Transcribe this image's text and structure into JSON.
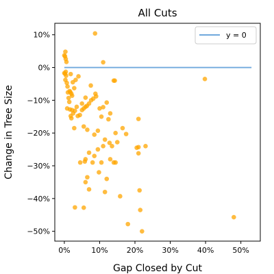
{
  "chart_data": {
    "type": "scatter",
    "title": "All Cuts",
    "xlabel": "Gap Closed by Cut",
    "ylabel": "Change in Tree Size",
    "xlim": [
      -0.027,
      0.555
    ],
    "ylim": [
      -0.53,
      0.135
    ],
    "x_ticks": [
      0,
      0.1,
      0.2,
      0.3,
      0.4,
      0.5
    ],
    "x_tick_labels": [
      "0%",
      "10%",
      "20%",
      "30%",
      "40%",
      "50%"
    ],
    "y_ticks": [
      0.1,
      0.0,
      -0.1,
      -0.2,
      -0.3,
      -0.4,
      -0.5
    ],
    "y_tick_labels": [
      "10%",
      "0%",
      "−10%",
      "−20%",
      "−30%",
      "−40%",
      "−50%"
    ],
    "grid": false,
    "legend": {
      "position": "top-right",
      "entries": [
        "y = 0"
      ]
    },
    "colors": {
      "points": "#FFA500",
      "reference_line": "#6FA8DC"
    },
    "reference_line": {
      "name": "y = 0",
      "y": 0,
      "x_range": [
        0,
        0.53
      ]
    },
    "series": [
      {
        "x": [
          0.0,
          0.002,
          0.004,
          0.003,
          0.006,
          0.0,
          0.002,
          0.004,
          0.005,
          0.003,
          0.007,
          0.009,
          0.01,
          0.012,
          0.017,
          0.02,
          0.022,
          0.015,
          0.028,
          0.04,
          0.018,
          0.024,
          0.032,
          0.014,
          0.008,
          0.016,
          0.022,
          0.03,
          0.038,
          0.044,
          0.05,
          0.055,
          0.06,
          0.064,
          0.07,
          0.076,
          0.082,
          0.088,
          0.09,
          0.075,
          0.06,
          0.05,
          0.035,
          0.025,
          0.018,
          0.02,
          0.028,
          0.055,
          0.065,
          0.085,
          0.095,
          0.1,
          0.11,
          0.12,
          0.13,
          0.14,
          0.125,
          0.105,
          0.115,
          0.128,
          0.15,
          0.165,
          0.175,
          0.145,
          0.135,
          0.11,
          0.095,
          0.085,
          0.07,
          0.06,
          0.045,
          0.058,
          0.065,
          0.08,
          0.098,
          0.105,
          0.12,
          0.13,
          0.14,
          0.145,
          0.06,
          0.07,
          0.055,
          0.03,
          0.087,
          0.11,
          0.143,
          0.115,
          0.158,
          0.18,
          0.21,
          0.205,
          0.21,
          0.21,
          0.215,
          0.213,
          0.22,
          0.23,
          0.398,
          0.48
        ],
        "y": [
          0.037,
          0.034,
          0.026,
          0.048,
          0.017,
          -0.017,
          -0.019,
          -0.013,
          -0.025,
          -0.038,
          -0.047,
          -0.058,
          -0.076,
          -0.093,
          -0.075,
          -0.08,
          -0.086,
          -0.072,
          -0.063,
          -0.027,
          -0.02,
          -0.045,
          -0.038,
          -0.105,
          -0.125,
          -0.128,
          -0.13,
          -0.132,
          -0.148,
          -0.145,
          -0.13,
          -0.125,
          -0.12,
          -0.117,
          -0.11,
          -0.1,
          -0.095,
          -0.08,
          -0.088,
          -0.055,
          -0.092,
          -0.11,
          -0.12,
          -0.14,
          -0.148,
          -0.155,
          -0.185,
          -0.18,
          -0.19,
          -0.205,
          -0.193,
          -0.125,
          -0.121,
          -0.107,
          -0.14,
          -0.04,
          -0.158,
          -0.15,
          -0.22,
          -0.23,
          -0.228,
          -0.185,
          -0.203,
          -0.2,
          -0.24,
          -0.24,
          -0.25,
          -0.27,
          -0.26,
          -0.28,
          -0.29,
          -0.287,
          -0.335,
          -0.29,
          -0.32,
          -0.29,
          -0.34,
          -0.28,
          -0.29,
          -0.29,
          -0.35,
          -0.372,
          -0.428,
          -0.427,
          0.104,
          0.016,
          -0.04,
          -0.38,
          -0.393,
          -0.478,
          -0.243,
          -0.245,
          -0.262,
          -0.157,
          -0.435,
          -0.375,
          -0.5,
          -0.24,
          -0.035,
          -0.457
        ]
      }
    ]
  }
}
